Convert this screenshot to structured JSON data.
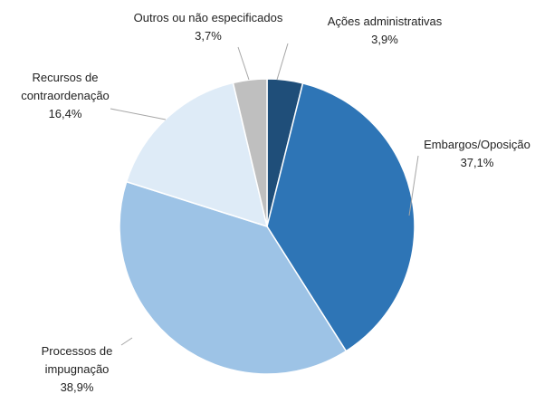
{
  "chart_data": {
    "type": "pie",
    "categories": [
      "Ações administrativas",
      "Embargos/Oposição",
      "Processos de impugnação",
      "Recursos de contraordenação",
      "Outros ou não especificados"
    ],
    "values": [
      3.9,
      37.1,
      38.9,
      16.4,
      3.7
    ],
    "value_labels": [
      "3,9%",
      "37,1%",
      "38,9%",
      "16,4%",
      "3,7%"
    ],
    "colors": [
      "#1f4e79",
      "#2e75b6",
      "#9dc3e6",
      "#deebf7",
      "#bfbfbf"
    ]
  }
}
